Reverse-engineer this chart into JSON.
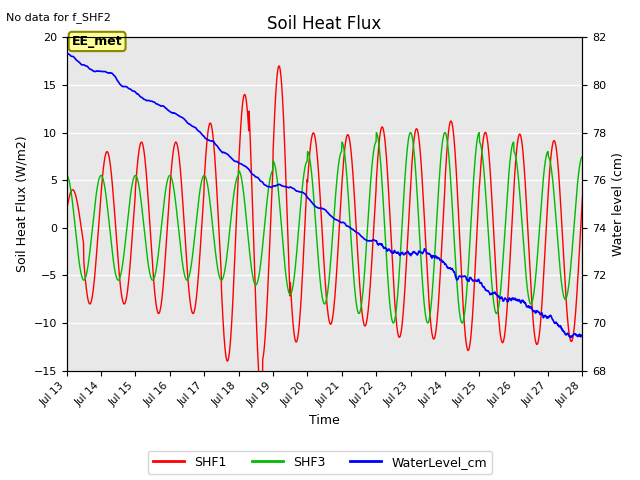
{
  "title": "Soil Heat Flux",
  "note": "No data for f_SHF2",
  "ylabel_left": "Soil Heat Flux (W/m2)",
  "ylabel_right": "Water level (cm)",
  "xlabel": "Time",
  "ylim_left": [
    -15,
    20
  ],
  "ylim_right": [
    68,
    82
  ],
  "x_ticks": [
    13,
    14,
    15,
    16,
    17,
    18,
    19,
    20,
    21,
    22,
    23,
    24,
    25,
    26,
    27,
    28
  ],
  "x_tick_labels": [
    "Jul 13",
    "Jul 14",
    "Jul 15",
    "Jul 16",
    "Jul 17",
    "Jul 18",
    "Jul 19",
    "Jul 20",
    "Jul 21",
    "Jul 22",
    "Jul 23",
    "Jul 24",
    "Jul 25",
    "Jul 26",
    "Jul 27",
    "Jul 28"
  ],
  "yticks_left": [
    -15,
    -10,
    -5,
    0,
    5,
    10,
    15,
    20
  ],
  "yticks_right": [
    68,
    70,
    72,
    74,
    76,
    78,
    80,
    82
  ],
  "shf1_color": "#ff0000",
  "shf3_color": "#00bb00",
  "water_color": "#0000ff",
  "legend_label_shf1": "SHF1",
  "legend_label_shf3": "SHF3",
  "legend_label_water": "WaterLevel_cm",
  "background_inner": "#e8e8e8",
  "grid_color": "#ffffff",
  "ee_met_label": "EE_met",
  "ee_met_bg": "#ffff99",
  "ee_met_border": "#888800",
  "figsize": [
    6.4,
    4.8
  ],
  "dpi": 100
}
